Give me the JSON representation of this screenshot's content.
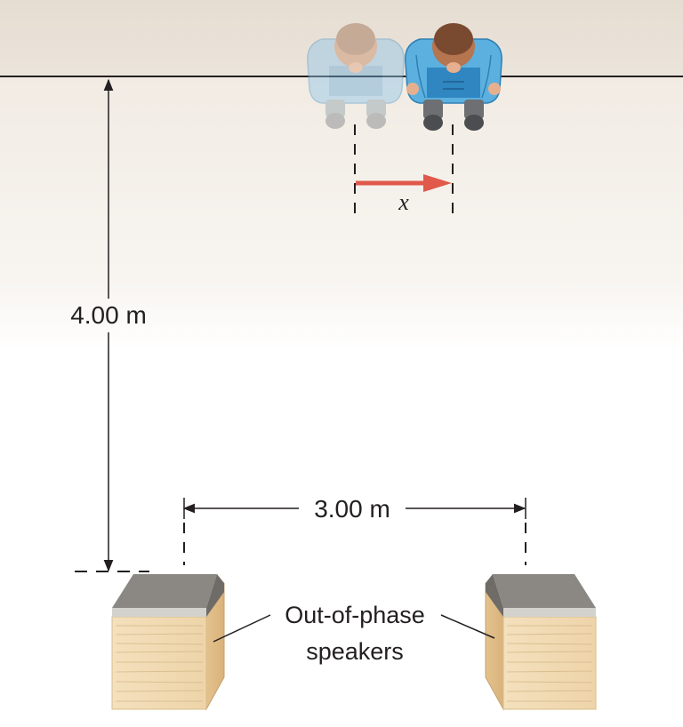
{
  "labels": {
    "distance_vertical": "4.00 m",
    "distance_horizontal": "3.00 m",
    "displacement_variable": "x",
    "speakers_line1": "Out-of-phase",
    "speakers_line2": "speakers"
  },
  "colors": {
    "wall_top": "#e8e0d6",
    "floor_fade": "#f3eee8",
    "displacement_arrow": "#e0594b",
    "shirt_faded": "#b8d9ee",
    "shirt_solid": "#4aa3d6",
    "speaker_wood": "#f2dcb6",
    "speaker_cap": "#8a8782"
  }
}
